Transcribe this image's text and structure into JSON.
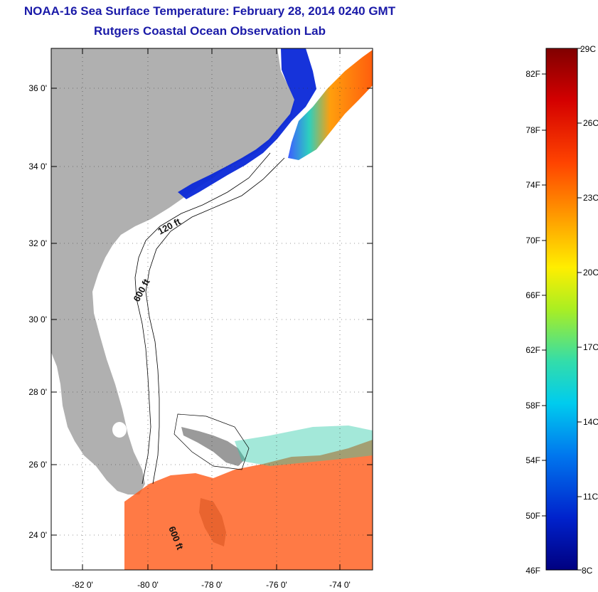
{
  "header": {
    "title": "NOAA-16 Sea Surface Temperature:  February 28, 2014 0240 GMT",
    "subtitle": "Rutgers Coastal Ocean Observation Lab"
  },
  "map": {
    "lat_labels": [
      "36 0'",
      "34 0'",
      "32 0'",
      "30 0'",
      "28 0'",
      "26 0'",
      "24 0'"
    ],
    "lon_labels": [
      "-82 0'",
      "-80 0'",
      "-78 0'",
      "-76 0'",
      "-74 0'"
    ],
    "contours": {
      "c120": "120 ft",
      "c600a": "600 ft",
      "c600b": "600 ft"
    },
    "colors": {
      "land": "#b0b0b0",
      "ocean": "#ffffff",
      "frame": "#000000"
    }
  },
  "colorbar": {
    "fahrenheit_labels": [
      "82F",
      "78F",
      "74F",
      "70F",
      "66F",
      "62F",
      "58F",
      "54F",
      "50F",
      "46F"
    ],
    "celsius_labels": [
      "29C",
      "26C",
      "23C",
      "20C",
      "17C",
      "14C",
      "11C",
      "8C"
    ],
    "gradient": [
      "#800000",
      "#d40000",
      "#ff4400",
      "#ff9900",
      "#ffee00",
      "#aaee22",
      "#33ddaa",
      "#00ccee",
      "#0077ee",
      "#0022cc",
      "#000080"
    ]
  }
}
